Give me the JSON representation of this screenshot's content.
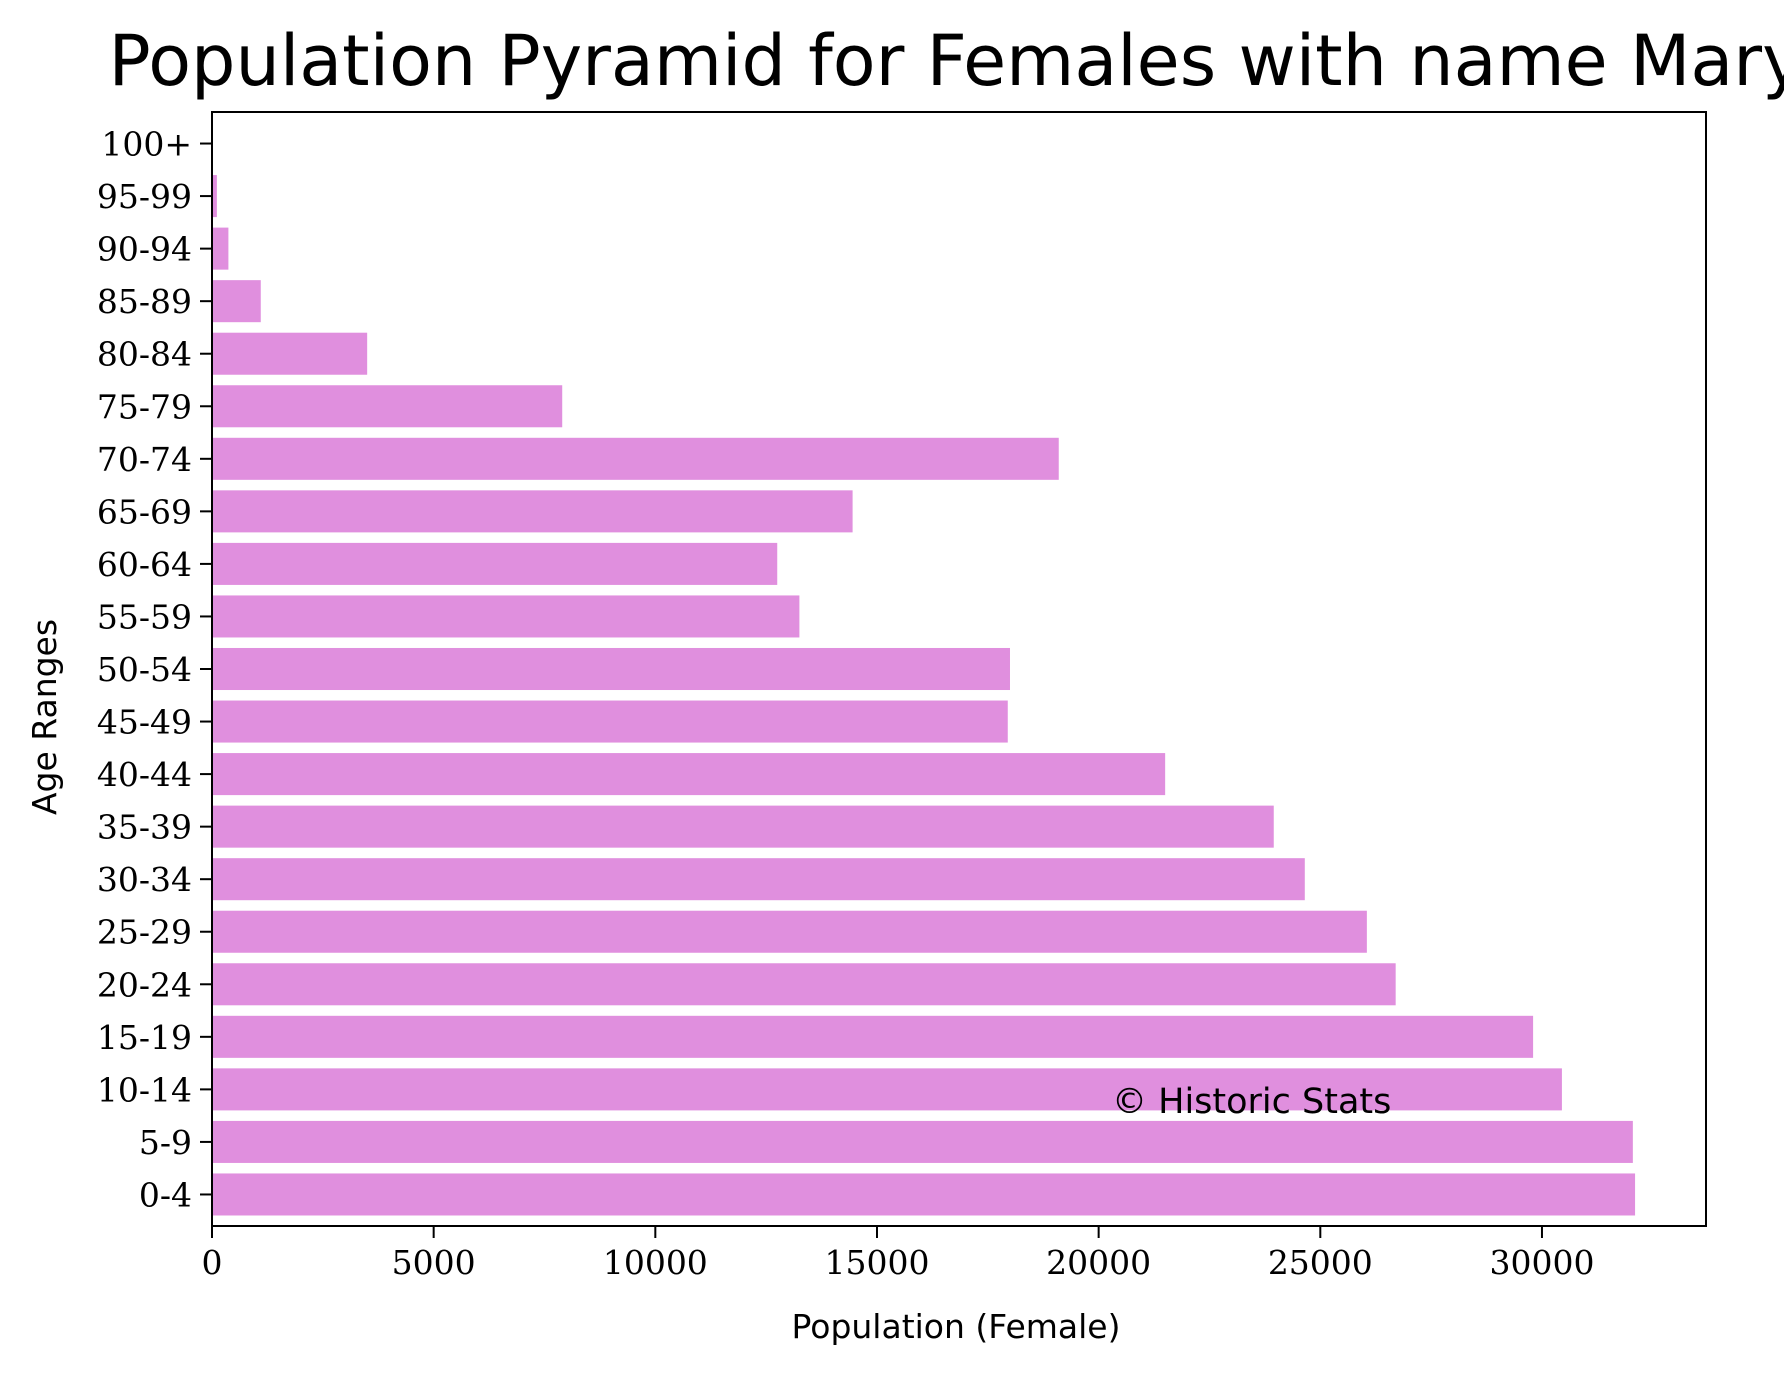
{
  "chart_data": {
    "type": "bar",
    "orientation": "horizontal",
    "title": "Population Pyramid for Females with name Mary",
    "xlabel": "Population (Female)",
    "ylabel": "Age Ranges",
    "xlim": [
      0,
      33700
    ],
    "xticks": [
      0,
      5000,
      10000,
      15000,
      20000,
      25000,
      30000
    ],
    "grid": false,
    "bar_color": "#e08fde",
    "categories": [
      "0-4",
      "5-9",
      "10-14",
      "15-19",
      "20-24",
      "25-29",
      "30-34",
      "35-39",
      "40-44",
      "45-49",
      "50-54",
      "55-59",
      "60-64",
      "65-69",
      "70-74",
      "75-79",
      "80-84",
      "85-89",
      "90-94",
      "95-99",
      "100+"
    ],
    "values": [
      32100,
      32050,
      30450,
      29800,
      26700,
      26050,
      24650,
      23950,
      21500,
      17950,
      18000,
      13250,
      12750,
      14450,
      19100,
      7900,
      3500,
      1100,
      370,
      110,
      15
    ],
    "watermark": "© Historic Stats"
  }
}
